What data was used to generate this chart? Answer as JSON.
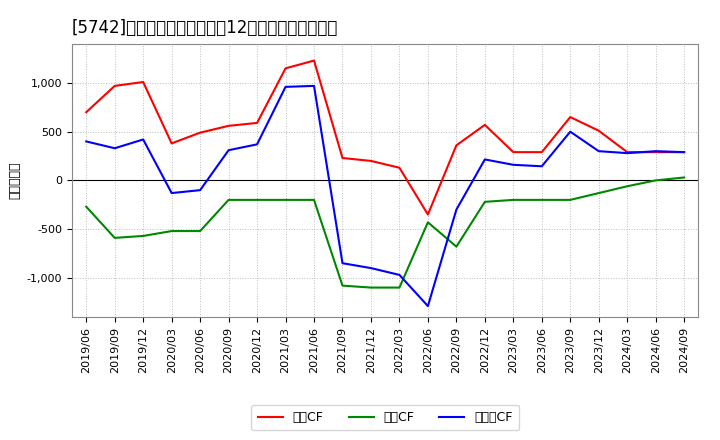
{
  "title": "[5742]　キャッシュフローの12か月移動合計の推移",
  "ylabel": "（百万円）",
  "x_labels": [
    "2019/06",
    "2019/09",
    "2019/12",
    "2020/03",
    "2020/06",
    "2020/09",
    "2020/12",
    "2021/03",
    "2021/06",
    "2021/09",
    "2021/12",
    "2022/03",
    "2022/06",
    "2022/09",
    "2022/12",
    "2023/03",
    "2023/06",
    "2023/09",
    "2023/12",
    "2024/03",
    "2024/06",
    "2024/09"
  ],
  "operating_cf": [
    700,
    970,
    1010,
    380,
    490,
    560,
    590,
    1150,
    1230,
    230,
    200,
    130,
    -350,
    360,
    570,
    290,
    290,
    650,
    510,
    290,
    290,
    290
  ],
  "investing_cf": [
    -270,
    -590,
    -570,
    -520,
    -520,
    -200,
    -200,
    -200,
    -200,
    -1080,
    -1100,
    -1100,
    -430,
    -680,
    -220,
    -200,
    -200,
    -200,
    -130,
    -60,
    0,
    30
  ],
  "free_cf": [
    400,
    330,
    420,
    -130,
    -100,
    310,
    370,
    960,
    970,
    -850,
    -900,
    -970,
    -1290,
    -300,
    215,
    160,
    145,
    500,
    300,
    280,
    300,
    290
  ],
  "ylim": [
    -1400,
    1400
  ],
  "yticks": [
    -1000,
    -500,
    0,
    500,
    1000
  ],
  "line_color_operating": "#ff0000",
  "line_color_investing": "#008800",
  "line_color_free": "#0000ff",
  "background_color": "#ffffff",
  "plot_bg_color": "#ffffff",
  "grid_color": "#bbbbbb",
  "title_fontsize": 12,
  "axis_fontsize": 8,
  "legend_fontsize": 9,
  "legend_labels": [
    "営業CF",
    "投資CF",
    "フリーCF"
  ]
}
